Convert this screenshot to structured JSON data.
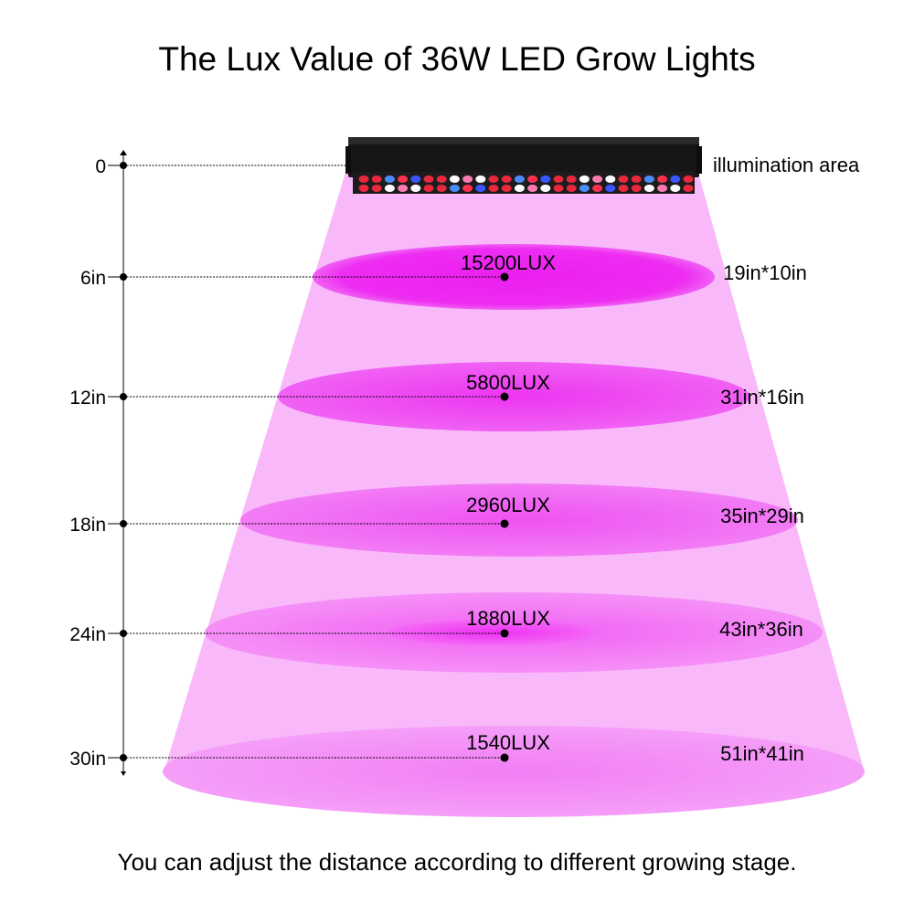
{
  "title": "The Lux Value of 36W LED Grow Lights",
  "footer": "You can adjust the distance according to different growing stage.",
  "area_header": "illumination area",
  "colors": {
    "beam": "#f9b8fa",
    "spot": "#ee2cf2",
    "fixture": "#161616"
  },
  "levels": [
    {
      "distance": "0",
      "lux": "",
      "area": ""
    },
    {
      "distance": "6in",
      "lux": "15200LUX",
      "area": "19in*10in"
    },
    {
      "distance": "12in",
      "lux": "5800LUX",
      "area": "31in*16in"
    },
    {
      "distance": "18in",
      "lux": "2960LUX",
      "area": "35in*29in"
    },
    {
      "distance": "24in",
      "lux": "1880LUX",
      "area": "43in*36in"
    },
    {
      "distance": "30in",
      "lux": "1540LUX",
      "area": "51in*41in"
    }
  ]
}
